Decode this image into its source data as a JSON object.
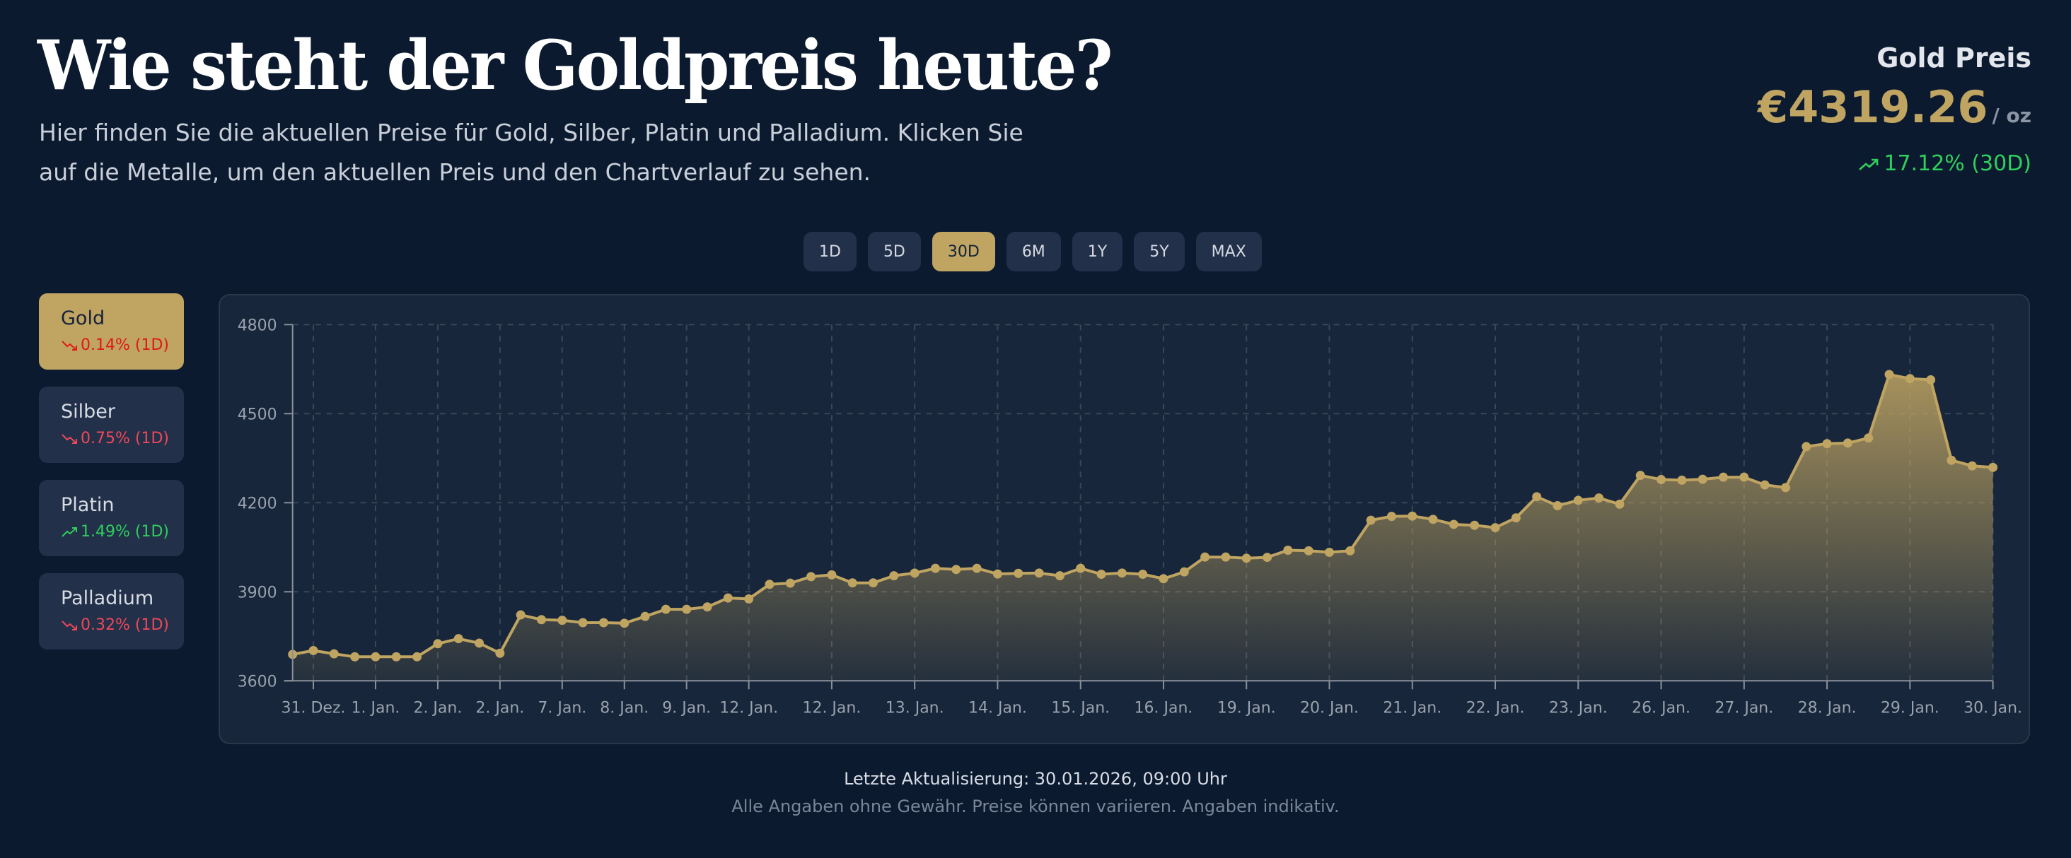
{
  "header": {
    "title": "Wie steht der Goldpreis heute?",
    "subtitle": "Hier finden Sie die aktuellen Preise für Gold, Silber, Platin und Palladium. Klicken Sie auf die Metalle, um den aktuellen Preis und den Chartverlauf zu sehen."
  },
  "price": {
    "label": "Gold Preis",
    "value": "€4319.26",
    "unit": "/ oz",
    "change": "17.12% (30D)",
    "change_direction": "up",
    "change_icon": "trending-up-icon"
  },
  "ranges": [
    {
      "label": "1D",
      "active": false
    },
    {
      "label": "5D",
      "active": false
    },
    {
      "label": "30D",
      "active": true
    },
    {
      "label": "6M",
      "active": false
    },
    {
      "label": "1Y",
      "active": false
    },
    {
      "label": "5Y",
      "active": false
    },
    {
      "label": "MAX",
      "active": false
    }
  ],
  "metals": [
    {
      "name": "Gold",
      "change": "0.14% (1D)",
      "direction": "down",
      "active": true
    },
    {
      "name": "Silber",
      "change": "0.75% (1D)",
      "direction": "down",
      "active": false
    },
    {
      "name": "Platin",
      "change": "1.49% (1D)",
      "direction": "up",
      "active": false
    },
    {
      "name": "Palladium",
      "change": "0.32% (1D)",
      "direction": "down",
      "active": false
    }
  ],
  "colors": {
    "background": "#0b1a2f",
    "card": "#17263a",
    "button": "#223049",
    "accent_gold": "#bfa462",
    "positive": "#2fcf5c",
    "negative": "#f0475a"
  },
  "chart_data": {
    "type": "area",
    "title": "",
    "xlabel": "",
    "ylabel": "",
    "ylim": [
      3600,
      4800
    ],
    "yticks": [
      3600,
      3900,
      4200,
      4500,
      4800
    ],
    "grid": true,
    "legend": null,
    "series": [
      {
        "name": "Gold",
        "color": "#bfa462",
        "values": [
          3689,
          3702,
          3691,
          3681,
          3681,
          3681,
          3681,
          3725,
          3742,
          3727,
          3693,
          3822,
          3806,
          3804,
          3796,
          3796,
          3794,
          3817,
          3841,
          3841,
          3849,
          3879,
          3876,
          3925,
          3929,
          3951,
          3957,
          3930,
          3930,
          3954,
          3963,
          3979,
          3975,
          3979,
          3960,
          3962,
          3963,
          3954,
          3979,
          3959,
          3963,
          3959,
          3944,
          3967,
          4017,
          4017,
          4013,
          4016,
          4040,
          4038,
          4033,
          4038,
          4141,
          4154,
          4155,
          4144,
          4127,
          4124,
          4116,
          4149,
          4220,
          4190,
          4208,
          4216,
          4195,
          4292,
          4278,
          4276,
          4279,
          4286,
          4286,
          4260,
          4251,
          4389,
          4399,
          4401,
          4418,
          4632,
          4618,
          4614,
          4343,
          4324,
          4319
        ]
      }
    ],
    "xticks": [
      {
        "index": 1,
        "label": "31. Dez."
      },
      {
        "index": 4,
        "label": "1. Jan."
      },
      {
        "index": 7,
        "label": "2. Jan."
      },
      {
        "index": 10,
        "label": "2. Jan."
      },
      {
        "index": 13,
        "label": "7. Jan."
      },
      {
        "index": 16,
        "label": "8. Jan."
      },
      {
        "index": 19,
        "label": "9. Jan."
      },
      {
        "index": 22,
        "label": "12. Jan."
      },
      {
        "index": 26,
        "label": "12. Jan."
      },
      {
        "index": 30,
        "label": "13. Jan."
      },
      {
        "index": 34,
        "label": "14. Jan."
      },
      {
        "index": 38,
        "label": "15. Jan."
      },
      {
        "index": 42,
        "label": "16. Jan."
      },
      {
        "index": 46,
        "label": "19. Jan."
      },
      {
        "index": 50,
        "label": "20. Jan."
      },
      {
        "index": 54,
        "label": "21. Jan."
      },
      {
        "index": 58,
        "label": "22. Jan."
      },
      {
        "index": 62,
        "label": "23. Jan."
      },
      {
        "index": 66,
        "label": "26. Jan."
      },
      {
        "index": 70,
        "label": "27. Jan."
      },
      {
        "index": 74,
        "label": "28. Jan."
      },
      {
        "index": 78,
        "label": "29. Jan."
      },
      {
        "index": 82,
        "label": "30. Jan."
      }
    ]
  },
  "footer": {
    "last_update": "Letzte Aktualisierung: 30.01.2026, 09:00 Uhr",
    "disclaimer": "Alle Angaben ohne Gewähr. Preise können variieren. Angaben indikativ."
  }
}
